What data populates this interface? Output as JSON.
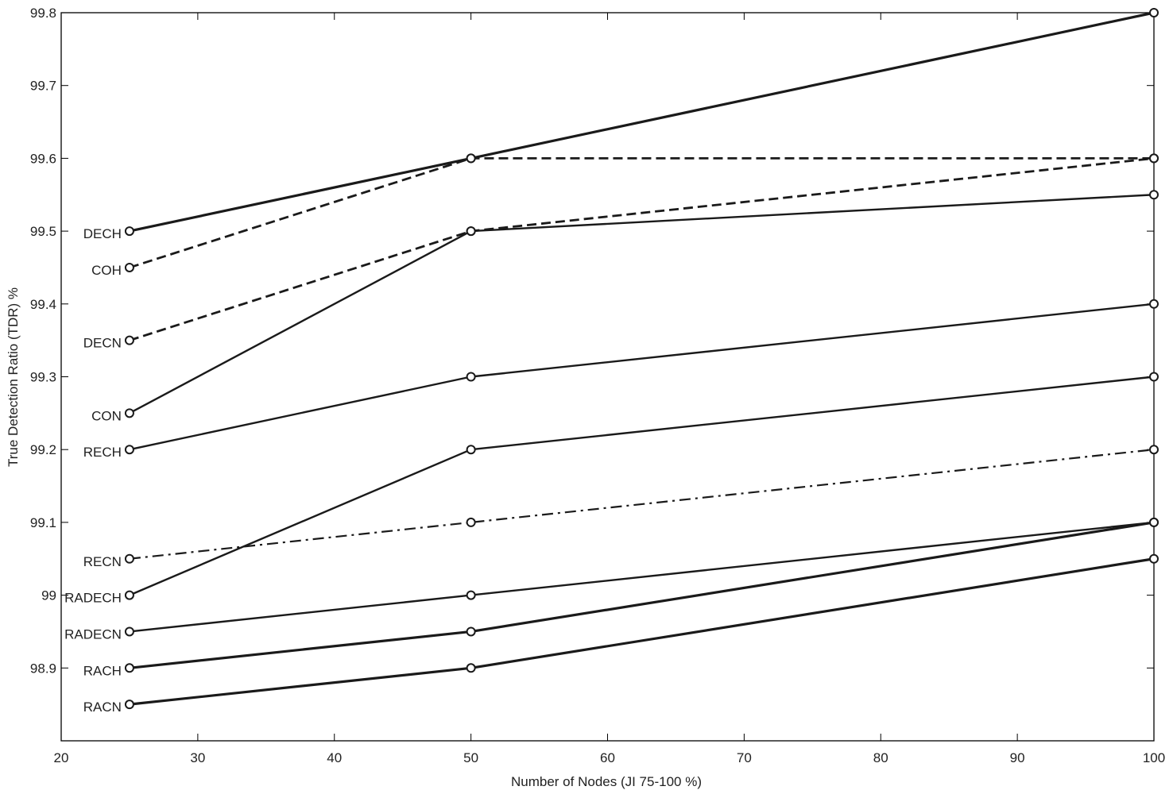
{
  "chart_data": {
    "type": "line",
    "title": "",
    "xlabel": "Number of Nodes (JI 75-100 %)",
    "ylabel": "True Detection Ratio (TDR) %",
    "xlim": [
      20,
      100
    ],
    "ylim": [
      98.8,
      99.8
    ],
    "xticks": [
      20,
      30,
      40,
      50,
      60,
      70,
      80,
      90,
      100
    ],
    "yticks": [
      "98.9",
      "99",
      "99.1",
      "99.2",
      "99.3",
      "99.4",
      "99.5",
      "99.6",
      "99.7",
      "99.8"
    ],
    "grid": false,
    "legend": "none (series labeled inline at left)",
    "x": [
      25,
      50,
      100
    ],
    "series": [
      {
        "name": "DECH",
        "values": [
          99.5,
          99.6,
          99.8
        ],
        "style": "solid-bold"
      },
      {
        "name": "COH",
        "values": [
          99.45,
          99.6,
          99.6
        ],
        "style": "dashed"
      },
      {
        "name": "DECN",
        "values": [
          99.35,
          99.5,
          99.6
        ],
        "style": "dashed"
      },
      {
        "name": "CON",
        "values": [
          99.25,
          99.5,
          99.55
        ],
        "style": "solid"
      },
      {
        "name": "RECH",
        "values": [
          99.2,
          99.3,
          99.4
        ],
        "style": "solid"
      },
      {
        "name": "RECN",
        "values": [
          99.05,
          99.1,
          99.2
        ],
        "style": "dashdot"
      },
      {
        "name": "RADECH",
        "values": [
          99.0,
          99.2,
          99.3
        ],
        "style": "solid"
      },
      {
        "name": "RADECN",
        "values": [
          98.95,
          99.0,
          99.1
        ],
        "style": "solid"
      },
      {
        "name": "RACH",
        "values": [
          98.9,
          98.95,
          99.1
        ],
        "style": "solid-bold"
      },
      {
        "name": "RACN",
        "values": [
          98.85,
          98.9,
          99.05
        ],
        "style": "solid-bold"
      }
    ],
    "colors": {
      "line": "#1a1a1a",
      "axis": "#000000"
    }
  }
}
